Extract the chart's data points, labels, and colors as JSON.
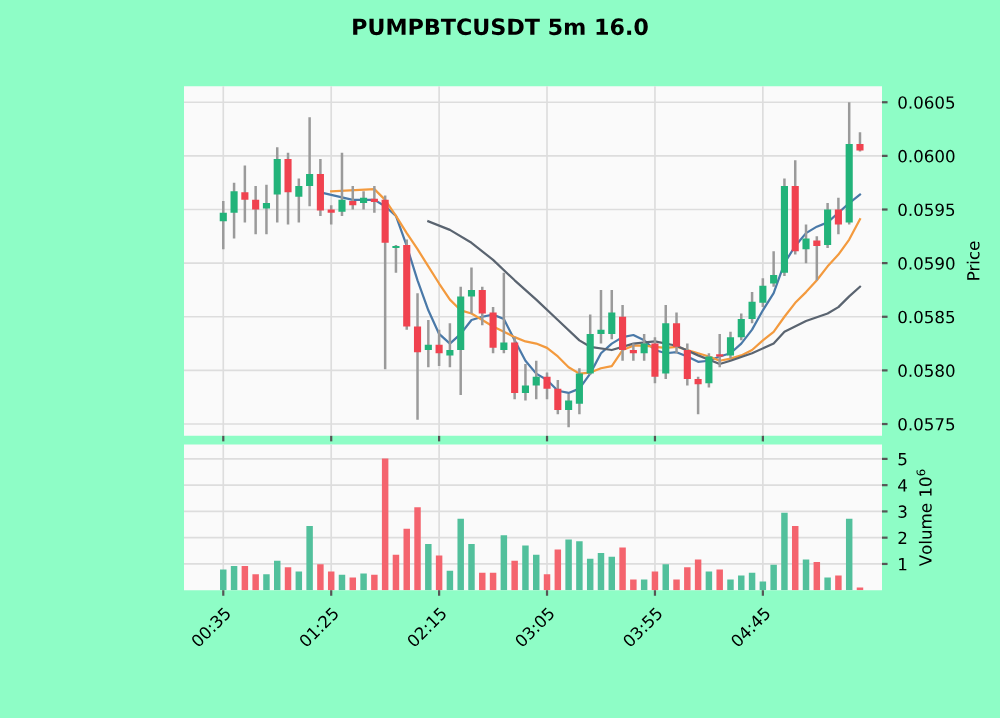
{
  "chart_data": [
    {
      "type": "candlestick",
      "title": "PUMPBTCUSDT 5m 16.0",
      "ylabel": "Price",
      "x": [
        0.5833,
        0.6667,
        0.75,
        0.8333,
        0.9167,
        1.0,
        1.0833,
        1.1667,
        1.25,
        1.3333,
        1.4167,
        1.5,
        1.5833,
        1.6667,
        1.75,
        1.8333,
        1.9167,
        2.0,
        2.0833,
        2.1667,
        2.25,
        2.3333,
        2.4167,
        2.5,
        2.5833,
        2.6667,
        2.75,
        2.8333,
        2.9167,
        3.0,
        3.0833,
        3.1667,
        3.25,
        3.3333,
        3.4167,
        3.5,
        3.5833,
        3.6667,
        3.75,
        3.8333,
        3.9167,
        4.0,
        4.0833,
        4.1667,
        4.25,
        4.3333,
        4.4167,
        4.5,
        4.5833,
        4.6667,
        4.75,
        4.8333,
        4.9167,
        5.0,
        5.0833,
        5.1667,
        5.25,
        5.3333,
        5.4167,
        5.5
      ],
      "ohlc": [
        [
          0.05939,
          0.05958,
          0.05913,
          0.05947
        ],
        [
          0.05947,
          0.05975,
          0.05923,
          0.05967
        ],
        [
          0.05966,
          0.05991,
          0.05938,
          0.05959
        ],
        [
          0.05959,
          0.05972,
          0.05927,
          0.0595
        ],
        [
          0.05951,
          0.05973,
          0.05927,
          0.05956
        ],
        [
          0.05964,
          0.06008,
          0.05938,
          0.05997
        ],
        [
          0.05997,
          0.06003,
          0.05936,
          0.05966
        ],
        [
          0.05962,
          0.05979,
          0.05938,
          0.05972
        ],
        [
          0.05972,
          0.06036,
          0.05953,
          0.05983
        ],
        [
          0.05983,
          0.05997,
          0.05944,
          0.05949
        ],
        [
          0.0595,
          0.05954,
          0.05936,
          0.05947
        ],
        [
          0.05948,
          0.06003,
          0.05944,
          0.05959
        ],
        [
          0.05958,
          0.05972,
          0.0595,
          0.05954
        ],
        [
          0.05956,
          0.05967,
          0.0595,
          0.05961
        ],
        [
          0.0596,
          0.05972,
          0.05947,
          0.05957
        ],
        [
          0.05959,
          0.05963,
          0.05801,
          0.05919
        ],
        [
          0.05914,
          0.05917,
          0.05891,
          0.05916
        ],
        [
          0.05917,
          0.05922,
          0.05838,
          0.05841
        ],
        [
          0.05841,
          0.05872,
          0.05754,
          0.05817
        ],
        [
          0.05819,
          0.05847,
          0.05803,
          0.05824
        ],
        [
          0.05824,
          0.05838,
          0.05804,
          0.05816
        ],
        [
          0.05814,
          0.05844,
          0.05803,
          0.05819
        ],
        [
          0.05819,
          0.05878,
          0.05777,
          0.05869
        ],
        [
          0.05869,
          0.05896,
          0.05853,
          0.05875
        ],
        [
          0.05875,
          0.05878,
          0.05842,
          0.05853
        ],
        [
          0.05854,
          0.05859,
          0.05816,
          0.05821
        ],
        [
          0.05819,
          0.05891,
          0.05816,
          0.05826
        ],
        [
          0.05826,
          0.05831,
          0.05773,
          0.05779
        ],
        [
          0.05779,
          0.05806,
          0.05772,
          0.05786
        ],
        [
          0.05786,
          0.05809,
          0.05773,
          0.05794
        ],
        [
          0.05794,
          0.05798,
          0.05773,
          0.05783
        ],
        [
          0.05783,
          0.05791,
          0.05759,
          0.05763
        ],
        [
          0.05763,
          0.05778,
          0.05747,
          0.05772
        ],
        [
          0.05769,
          0.05802,
          0.05759,
          0.05797
        ],
        [
          0.05797,
          0.05852,
          0.05796,
          0.05834
        ],
        [
          0.05834,
          0.05875,
          0.05825,
          0.05838
        ],
        [
          0.05834,
          0.05875,
          0.05829,
          0.05854
        ],
        [
          0.0585,
          0.05861,
          0.05809,
          0.05819
        ],
        [
          0.05819,
          0.05825,
          0.05809,
          0.05816
        ],
        [
          0.05816,
          0.05834,
          0.05809,
          0.05825
        ],
        [
          0.05825,
          0.05831,
          0.05788,
          0.05794
        ],
        [
          0.05797,
          0.05861,
          0.05792,
          0.05844
        ],
        [
          0.05844,
          0.05854,
          0.05816,
          0.05822
        ],
        [
          0.05819,
          0.05825,
          0.05786,
          0.05792
        ],
        [
          0.05792,
          0.05794,
          0.05759,
          0.05787
        ],
        [
          0.05788,
          0.05816,
          0.05784,
          0.05813
        ],
        [
          0.05815,
          0.05834,
          0.05803,
          0.05813
        ],
        [
          0.05814,
          0.05836,
          0.05811,
          0.05831
        ],
        [
          0.05831,
          0.05853,
          0.05828,
          0.05848
        ],
        [
          0.05848,
          0.05873,
          0.05844,
          0.05864
        ],
        [
          0.05863,
          0.05886,
          0.05859,
          0.05879
        ],
        [
          0.05881,
          0.05911,
          0.05878,
          0.05889
        ],
        [
          0.05891,
          0.05979,
          0.05888,
          0.05972
        ],
        [
          0.05972,
          0.05996,
          0.05908,
          0.05911
        ],
        [
          0.05913,
          0.05936,
          0.059,
          0.05923
        ],
        [
          0.05921,
          0.05925,
          0.05884,
          0.05916
        ],
        [
          0.05917,
          0.05956,
          0.05914,
          0.0595
        ],
        [
          0.0595,
          0.05961,
          0.05927,
          0.05936
        ],
        [
          0.05938,
          0.0605,
          0.05936,
          0.06011
        ],
        [
          0.06011,
          0.06022,
          0.06004,
          0.06005
        ]
      ],
      "colors": [
        "#22b37a",
        "#22b37a",
        "#f0424f",
        "#f0424f",
        "#22b37a",
        "#22b37a",
        "#f0424f",
        "#22b37a",
        "#22b37a",
        "#f0424f",
        "#f0424f",
        "#22b37a",
        "#f0424f",
        "#22b37a",
        "#f0424f",
        "#f0424f",
        "#22b37a",
        "#f0424f",
        "#f0424f",
        "#22b37a",
        "#f0424f",
        "#22b37a",
        "#22b37a",
        "#22b37a",
        "#f0424f",
        "#f0424f",
        "#22b37a",
        "#f0424f",
        "#22b37a",
        "#22b37a",
        "#f0424f",
        "#f0424f",
        "#22b37a",
        "#22b37a",
        "#22b37a",
        "#22b37a",
        "#22b37a",
        "#f0424f",
        "#f0424f",
        "#22b37a",
        "#f0424f",
        "#22b37a",
        "#f0424f",
        "#f0424f",
        "#f0424f",
        "#22b37a",
        "#f0424f",
        "#22b37a",
        "#22b37a",
        "#22b37a",
        "#22b37a",
        "#22b37a",
        "#22b37a",
        "#f0424f",
        "#22b37a",
        "#f0424f",
        "#22b37a",
        "#f0424f",
        "#22b37a",
        "#f0424f"
      ],
      "series": [
        {
          "type": "line",
          "color": "#4a79a8",
          "x": [
            1.3333,
            1.5833,
            1.75,
            1.8333,
            1.9167,
            2.0,
            2.0833,
            2.1667,
            2.25,
            2.3333,
            2.4167,
            2.5,
            2.5833,
            2.6667,
            2.75,
            2.8333,
            2.9167,
            3.0,
            3.0833,
            3.1667,
            3.25,
            3.3333,
            3.4167,
            3.5,
            3.5833,
            3.6667,
            3.75,
            3.8333,
            3.9167,
            4.0,
            4.0833,
            4.1667,
            4.25,
            4.3333,
            4.4167,
            4.5,
            4.5833,
            4.6667,
            4.75,
            4.8333,
            4.9167,
            5.0,
            5.0833,
            5.1667,
            5.25,
            5.3333,
            5.4167,
            5.5
          ],
          "values": [
            0.05966,
            0.05959,
            0.05959,
            0.05953,
            0.05944,
            0.05916,
            0.05884,
            0.05856,
            0.05834,
            0.05825,
            0.05834,
            0.05847,
            0.0585,
            0.05852,
            0.05848,
            0.05828,
            0.05809,
            0.05797,
            0.05791,
            0.05781,
            0.05779,
            0.05783,
            0.05797,
            0.05816,
            0.05825,
            0.05831,
            0.05833,
            0.05828,
            0.05819,
            0.05816,
            0.05817,
            0.05813,
            0.05808,
            0.05809,
            0.05813,
            0.05816,
            0.05825,
            0.05838,
            0.05856,
            0.05872,
            0.059,
            0.05916,
            0.05928,
            0.05934,
            0.05938,
            0.05947,
            0.05956,
            0.05964
          ]
        },
        {
          "type": "line",
          "color": "#f39a3e",
          "x": [
            1.4167,
            1.75,
            1.8333,
            1.9167,
            2.0,
            2.0833,
            2.1667,
            2.25,
            2.3333,
            2.4167,
            2.5,
            2.5833,
            2.6667,
            2.75,
            2.8333,
            2.9167,
            3.0,
            3.0833,
            3.1667,
            3.25,
            3.3333,
            3.4167,
            3.5,
            3.5833,
            3.6667,
            3.75,
            3.8333,
            3.9167,
            4.0,
            4.0833,
            4.1667,
            4.25,
            4.3333,
            4.4167,
            4.5,
            4.5833,
            4.6667,
            4.75,
            4.8333,
            4.9167,
            5.0,
            5.0833,
            5.1667,
            5.25,
            5.3333,
            5.4167,
            5.5
          ],
          "values": [
            0.05967,
            0.05969,
            0.05959,
            0.05944,
            0.05928,
            0.05913,
            0.05897,
            0.05881,
            0.05866,
            0.05856,
            0.05853,
            0.05847,
            0.05841,
            0.05836,
            0.05831,
            0.05827,
            0.05825,
            0.05821,
            0.05813,
            0.05803,
            0.05797,
            0.05798,
            0.05802,
            0.05804,
            0.05819,
            0.05823,
            0.05823,
            0.05822,
            0.05821,
            0.05822,
            0.05819,
            0.05816,
            0.05813,
            0.05809,
            0.05811,
            0.05814,
            0.05819,
            0.05828,
            0.05836,
            0.0585,
            0.05863,
            0.05873,
            0.05884,
            0.05897,
            0.05908,
            0.05922,
            0.05941
          ]
        },
        {
          "type": "line",
          "color": "#5a6470",
          "x": [
            2.1667,
            2.3333,
            2.5,
            2.6667,
            2.8333,
            3.0,
            3.1667,
            3.3333,
            3.4167,
            3.5833,
            3.75,
            3.9167,
            4.0833,
            4.25,
            4.4167,
            4.5,
            4.6667,
            4.8333,
            4.9167,
            5.0833,
            5.25,
            5.3333,
            5.4167,
            5.5
          ],
          "values": [
            0.05939,
            0.05931,
            0.05919,
            0.05903,
            0.05884,
            0.05866,
            0.05847,
            0.05828,
            0.05822,
            0.05819,
            0.05825,
            0.05827,
            0.05823,
            0.05814,
            0.05806,
            0.05809,
            0.05816,
            0.05825,
            0.05836,
            0.05846,
            0.05853,
            0.05859,
            0.05869,
            0.05878
          ]
        }
      ],
      "xlim": [
        0.28,
        5.67
      ],
      "ylim": [
        0.05739,
        0.06065
      ],
      "yticks": [
        0.0575,
        {
          "value": 0.058,
          "label": "0.0580"
        },
        0.0585,
        {
          "value": 0.059,
          "label": "0.0590"
        },
        0.0595,
        {
          "value": 0.06,
          "label": "0.0600"
        },
        0.0605
      ],
      "grid": true,
      "tick_labels": "y"
    },
    {
      "type": "bar",
      "ylabel": "Volume 10$^{6}$",
      "x": [
        0.5833,
        0.6667,
        0.75,
        0.8333,
        0.9167,
        1.0,
        1.0833,
        1.1667,
        1.25,
        1.3333,
        1.4167,
        1.5,
        1.5833,
        1.6667,
        1.75,
        1.8333,
        1.9167,
        2.0,
        2.0833,
        2.1667,
        2.25,
        2.3333,
        2.4167,
        2.5,
        2.5833,
        2.6667,
        2.75,
        2.8333,
        2.9167,
        3.0,
        3.0833,
        3.1667,
        3.25,
        3.3333,
        3.4167,
        3.5,
        3.5833,
        3.6667,
        3.75,
        3.8333,
        3.9167,
        4.0,
        4.0833,
        4.1667,
        4.25,
        4.3333,
        4.4167,
        4.5,
        4.5833,
        4.6667,
        4.75,
        4.8333,
        4.9167,
        5.0,
        5.0833,
        5.1667,
        5.25,
        5.3333,
        5.4167,
        5.5
      ],
      "values": [
        0.79,
        0.92,
        0.92,
        0.61,
        0.61,
        1.12,
        0.87,
        0.71,
        2.44,
        0.99,
        0.71,
        0.59,
        0.48,
        0.64,
        0.59,
        5.01,
        1.35,
        2.34,
        3.16,
        1.76,
        1.32,
        0.74,
        2.72,
        1.76,
        0.66,
        0.66,
        2.09,
        1.12,
        1.7,
        1.35,
        0.61,
        1.55,
        1.93,
        1.86,
        1.2,
        1.42,
        1.27,
        1.63,
        0.41,
        0.41,
        0.71,
        0.99,
        0.41,
        0.87,
        1.17,
        0.71,
        0.79,
        0.41,
        0.56,
        0.66,
        0.33,
        0.97,
        2.95,
        2.44,
        1.17,
        1.07,
        0.48,
        0.56,
        2.72,
        0.1
      ],
      "colors": [
        "#52c09c",
        "#52c09c",
        "#f4646e",
        "#f4646e",
        "#52c09c",
        "#52c09c",
        "#f4646e",
        "#52c09c",
        "#52c09c",
        "#f4646e",
        "#f4646e",
        "#52c09c",
        "#f4646e",
        "#52c09c",
        "#f4646e",
        "#f4646e",
        "#f4646e",
        "#f4646e",
        "#f4646e",
        "#52c09c",
        "#f4646e",
        "#52c09c",
        "#52c09c",
        "#52c09c",
        "#f4646e",
        "#f4646e",
        "#52c09c",
        "#f4646e",
        "#52c09c",
        "#52c09c",
        "#f4646e",
        "#f4646e",
        "#52c09c",
        "#52c09c",
        "#52c09c",
        "#52c09c",
        "#52c09c",
        "#f4646e",
        "#f4646e",
        "#52c09c",
        "#f4646e",
        "#52c09c",
        "#f4646e",
        "#f4646e",
        "#f4646e",
        "#52c09c",
        "#f4646e",
        "#52c09c",
        "#52c09c",
        "#52c09c",
        "#52c09c",
        "#52c09c",
        "#52c09c",
        "#f4646e",
        "#52c09c",
        "#f4646e",
        "#52c09c",
        "#f4646e",
        "#52c09c",
        "#f4646e"
      ],
      "xlim": [
        0.28,
        5.67
      ],
      "ylim": [
        0,
        5.55
      ],
      "yticks": [
        1,
        2,
        3,
        4,
        5
      ],
      "xticks": [
        {
          "value": 0.5833,
          "label": "00:35"
        },
        {
          "value": 1.4167,
          "label": "01:25"
        },
        {
          "value": 2.25,
          "label": "02:15"
        },
        {
          "value": 3.0833,
          "label": "03:05"
        },
        {
          "value": 3.9167,
          "label": "03:55"
        },
        {
          "value": 4.75,
          "label": "04:45"
        }
      ],
      "grid": true
    }
  ]
}
